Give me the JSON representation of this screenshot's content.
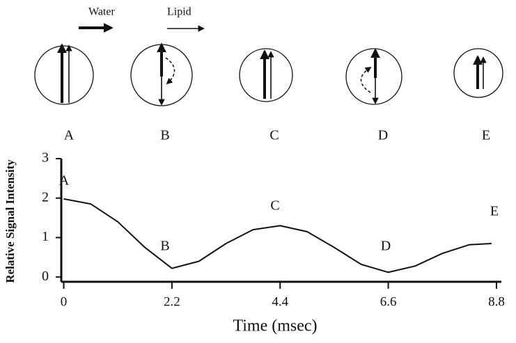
{
  "diagram": {
    "legend": [
      {
        "name": "Water"
      },
      {
        "name": "Lipid"
      }
    ],
    "phase_labels": [
      "A",
      "B",
      "C",
      "D",
      "E"
    ]
  },
  "chart_data": {
    "type": "line",
    "x_label": "Time (msec)",
    "y_label": "Relative Signal Intensity",
    "x": [
      0,
      0.55,
      1.1,
      1.65,
      2.2,
      2.75,
      3.3,
      3.85,
      4.4,
      4.95,
      5.5,
      6.05,
      6.6,
      7.15,
      7.7,
      8.25,
      8.7
    ],
    "series": [
      {
        "color": "#111111",
        "values": [
          1.98,
          1.85,
          1.4,
          0.75,
          0.22,
          0.4,
          0.85,
          1.2,
          1.3,
          1.15,
          0.75,
          0.32,
          0.12,
          0.28,
          0.6,
          0.82,
          0.85
        ]
      }
    ],
    "annotations": [
      "A",
      "B",
      "C",
      "D",
      "E"
    ],
    "xlim": [
      -0.05,
      8.9
    ],
    "xticks": [
      0,
      2.2,
      4.4,
      6.6,
      8.8
    ],
    "ylim": [
      -0.12,
      3
    ],
    "yticks": [
      0,
      1,
      2,
      3
    ],
    "grid": false
  }
}
